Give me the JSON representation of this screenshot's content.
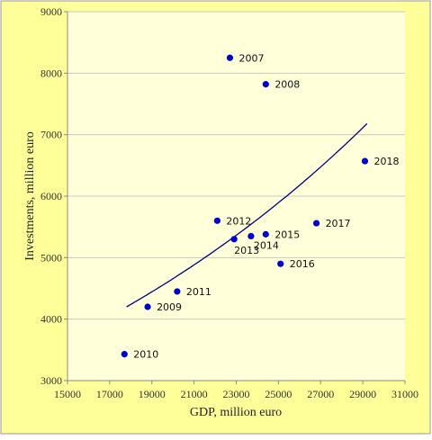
{
  "colors": {
    "outer_background": "#FFFF99",
    "plot_background": "#FFFFD9",
    "grid": "#C8C8C8",
    "points": "#0000CC",
    "trendline": "#000080"
  },
  "chart_data": {
    "type": "scatter",
    "title": "",
    "xlabel": "GDP, million euro",
    "ylabel": "Investments, million euro",
    "xlim": [
      15000,
      31000
    ],
    "ylim": [
      3000,
      9000
    ],
    "x_ticks": [
      15000,
      17000,
      19000,
      21000,
      23000,
      25000,
      27000,
      29000,
      31000
    ],
    "y_ticks": [
      3000,
      4000,
      5000,
      6000,
      7000,
      8000,
      9000
    ],
    "grid": "horizontal",
    "legend": "none",
    "points": [
      {
        "label": "2007",
        "x": 22700,
        "y": 8250
      },
      {
        "label": "2008",
        "x": 24400,
        "y": 7820
      },
      {
        "label": "2009",
        "x": 18800,
        "y": 4200
      },
      {
        "label": "2010",
        "x": 17700,
        "y": 3430
      },
      {
        "label": "2011",
        "x": 20200,
        "y": 4450
      },
      {
        "label": "2012",
        "x": 22100,
        "y": 5600
      },
      {
        "label": "2013",
        "x": 22900,
        "y": 5300
      },
      {
        "label": "2014",
        "x": 23700,
        "y": 5350
      },
      {
        "label": "2015",
        "x": 24400,
        "y": 5380
      },
      {
        "label": "2016",
        "x": 25100,
        "y": 4900
      },
      {
        "label": "2017",
        "x": 26800,
        "y": 5560
      },
      {
        "label": "2018",
        "x": 29100,
        "y": 6570
      }
    ],
    "trendline": {
      "type": "exponential",
      "x_range": [
        17800,
        29200
      ],
      "y_range": [
        4200,
        7180
      ]
    }
  }
}
